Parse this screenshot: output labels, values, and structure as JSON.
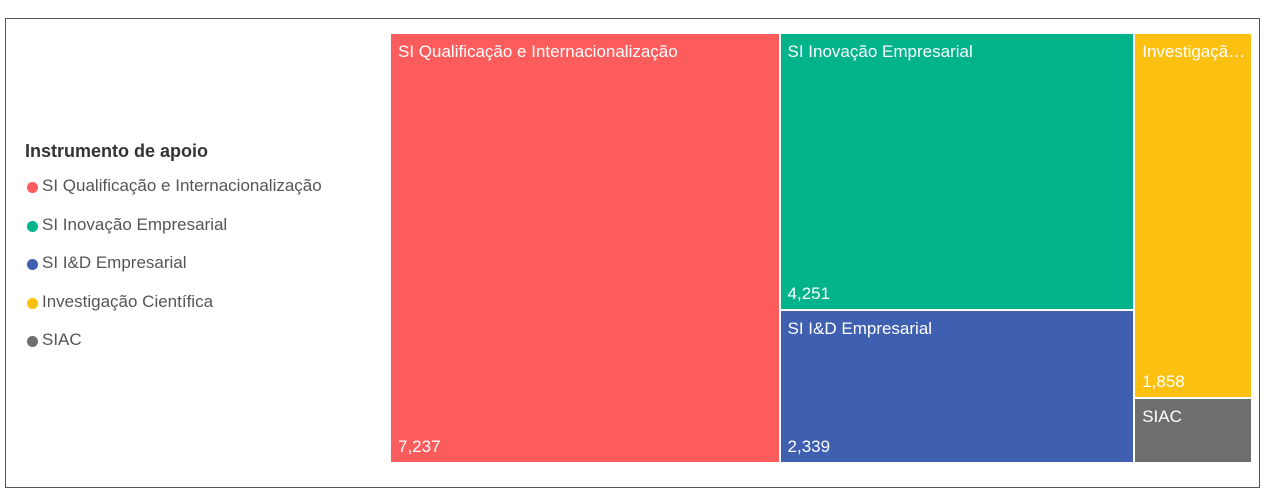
{
  "chart_data": {
    "type": "treemap",
    "legend_title": "Instrumento de apoio",
    "categories": [
      "SI Qualificação e Internacionalização",
      "SI Inovação Empresarial",
      "SI I&D Empresarial",
      "Investigação Científica",
      "SIAC"
    ],
    "values": [
      7237,
      4251,
      2339,
      1858,
      330
    ],
    "value_labels": [
      "7,237",
      "4,251",
      "2,339",
      "1,858",
      null
    ],
    "colors": [
      "#fd5c5c",
      "#01b38b",
      "#3f5fb0",
      "#fcc010",
      "#6e6e6e"
    ],
    "legend": "left"
  }
}
